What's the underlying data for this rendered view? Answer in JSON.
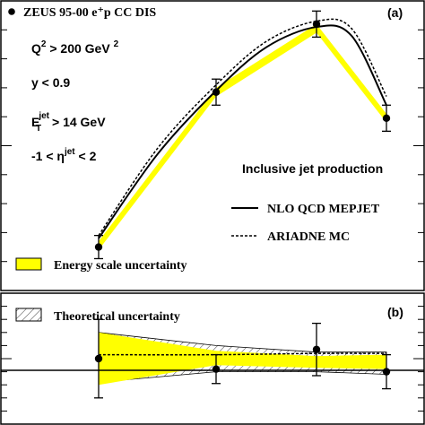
{
  "chart_data": [
    {
      "type": "line",
      "panel_label": "(a)",
      "title": "ZEUS 95-00 e⁺p CC DIS",
      "cuts": [
        {
          "main": "Q",
          "sup": "2",
          "rest": " > 200 GeV ",
          "sup2": "2"
        },
        {
          "main": "y < 0.9",
          "sup": "",
          "rest": "",
          "sup2": ""
        },
        {
          "main": "E",
          "sub": "T",
          "sup": "jet",
          "rest": " > 14 GeV",
          "sup2": ""
        },
        {
          "main": "-1 < η",
          "sup": "jet",
          "rest": " < 2",
          "sup2": ""
        }
      ],
      "subtitle": "Inclusive jet production",
      "x": [
        1,
        2,
        3,
        4
      ],
      "ylim": [
        0,
        1
      ],
      "series": [
        {
          "name": "ZEUS 95-00 e⁺p CC DIS",
          "kind": "data",
          "values": [
            0.15,
            0.685,
            0.92,
            0.595
          ],
          "err": [
            0.04,
            0.045,
            0.045,
            0.045
          ]
        },
        {
          "name": "NLO QCD MEPJET",
          "kind": "solid",
          "x": [
            1,
            1.5,
            2,
            2.5,
            3,
            3.5,
            4
          ],
          "values": [
            0.18,
            0.47,
            0.69,
            0.84,
            0.91,
            0.88,
            0.64
          ]
        },
        {
          "name": "ARIADNE MC",
          "kind": "dashed",
          "x": [
            1,
            1.5,
            2,
            2.5,
            3,
            3.5,
            4
          ],
          "values": [
            0.19,
            0.49,
            0.71,
            0.86,
            0.93,
            0.905,
            0.67
          ]
        },
        {
          "name": "Energy scale uncertainty",
          "kind": "band",
          "lower": [
            0.14,
            0.67,
            0.89,
            0.58
          ],
          "upper": [
            0.17,
            0.7,
            0.92,
            0.61
          ]
        }
      ]
    },
    {
      "type": "line",
      "panel_label": "(b)",
      "x": [
        1,
        2,
        3,
        4
      ],
      "ylim": [
        -0.5,
        0.5
      ],
      "series": [
        {
          "name": "data",
          "kind": "data",
          "values": [
            0,
            -0.08,
            0.07,
            -0.1
          ],
          "err": [
            0.3,
            0.11,
            0.2,
            0.13
          ]
        },
        {
          "name": "ARIADNE MC",
          "kind": "dashed",
          "values": [
            0.03,
            0.03,
            0.04,
            0.04
          ]
        },
        {
          "name": "Energy scale uncertainty",
          "kind": "band",
          "lower": [
            -0.2,
            -0.05,
            -0.07,
            -0.08
          ],
          "upper": [
            0.2,
            0.06,
            0.02,
            0.03
          ]
        },
        {
          "name": "Theoretical uncertainty",
          "kind": "hatched",
          "lower": [
            -0.18,
            -0.1,
            -0.1,
            -0.12
          ],
          "upper": [
            0.2,
            0.1,
            0.05,
            0.05
          ]
        }
      ]
    }
  ],
  "colors": {
    "band": "#ffff00",
    "line": "#000000",
    "background": "#ffffff"
  }
}
